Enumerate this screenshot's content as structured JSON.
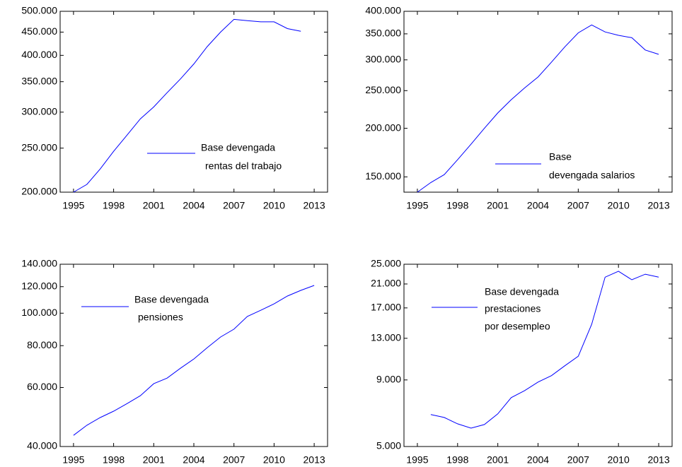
{
  "chart_data": [
    {
      "type": "line",
      "x": [
        1995,
        1996,
        1997,
        1998,
        1999,
        2000,
        2001,
        2002,
        2003,
        2004,
        2005,
        2006,
        2007,
        2008,
        2009,
        2010,
        2011,
        2012
      ],
      "series": [
        {
          "name": [
            "Base devengada",
            "rentas del trabajo"
          ],
          "color": "#0000ff",
          "values": [
            200000,
            208000,
            225000,
            246000,
            267000,
            290000,
            308000,
            331000,
            355000,
            383000,
            418000,
            450000,
            480000,
            477000,
            474000,
            474000,
            458000,
            452000
          ]
        }
      ],
      "xlim": [
        1994,
        2014
      ],
      "xticks": [
        1995,
        1998,
        2001,
        2004,
        2007,
        2010,
        2013
      ],
      "ylim": [
        200000,
        500000
      ],
      "log_scale": true,
      "yticks": [
        {
          "value": 200000,
          "label": "200.000"
        },
        {
          "value": 250000,
          "label": "250.000"
        },
        {
          "value": 300000,
          "label": "300.000"
        },
        {
          "value": 350000,
          "label": "350.000"
        },
        {
          "value": 400000,
          "label": "400.000"
        },
        {
          "value": 450000,
          "label": "450.000"
        },
        {
          "value": 500000,
          "label": "500.000"
        }
      ]
    },
    {
      "type": "line",
      "x": [
        1995,
        1996,
        1997,
        1998,
        1999,
        2000,
        2001,
        2002,
        2003,
        2004,
        2005,
        2006,
        2007,
        2008,
        2009,
        2010,
        2011,
        2012,
        2013
      ],
      "series": [
        {
          "name": [
            "Base",
            "devengada salarios"
          ],
          "color": "#0000ff",
          "values": [
            137000,
            145000,
            152000,
            166000,
            182000,
            200000,
            219000,
            237000,
            254000,
            271000,
            296000,
            324000,
            352000,
            369000,
            354000,
            347000,
            342000,
            318000,
            310000
          ]
        }
      ],
      "xlim": [
        1994,
        2014
      ],
      "xticks": [
        1995,
        1998,
        2001,
        2004,
        2007,
        2010,
        2013
      ],
      "ylim": [
        137000,
        400000
      ],
      "log_scale": true,
      "yticks": [
        {
          "value": 150000,
          "label": "150.000"
        },
        {
          "value": 200000,
          "label": "200.000"
        },
        {
          "value": 250000,
          "label": "250.000"
        },
        {
          "value": 300000,
          "label": "300.000"
        },
        {
          "value": 350000,
          "label": "350.000"
        },
        {
          "value": 400000,
          "label": "400.000"
        }
      ]
    },
    {
      "type": "line",
      "x": [
        1995,
        1996,
        1997,
        1998,
        1999,
        2000,
        2001,
        2002,
        2003,
        2004,
        2005,
        2006,
        2007,
        2008,
        2009,
        2010,
        2011,
        2012,
        2013
      ],
      "series": [
        {
          "name": [
            "Base devengada",
            "pensiones"
          ],
          "color": "#0000ff",
          "values": [
            43200,
            46300,
            48800,
            51000,
            53700,
            56700,
            61600,
            64000,
            68500,
            73000,
            78900,
            84900,
            89600,
            97800,
            102000,
            106600,
            112500,
            117000,
            121000
          ]
        }
      ],
      "xlim": [
        1994,
        2014
      ],
      "xticks": [
        1995,
        1998,
        2001,
        2004,
        2007,
        2010,
        2013
      ],
      "ylim": [
        40000,
        140000
      ],
      "log_scale": true,
      "yticks": [
        {
          "value": 40000,
          "label": "40.000"
        },
        {
          "value": 60000,
          "label": "60.000"
        },
        {
          "value": 80000,
          "label": "80.000"
        },
        {
          "value": 100000,
          "label": "100.000"
        },
        {
          "value": 120000,
          "label": "120.000"
        },
        {
          "value": 140000,
          "label": "140.000"
        }
      ]
    },
    {
      "type": "line",
      "x": [
        1996,
        1997,
        1998,
        1999,
        2000,
        2001,
        2002,
        2003,
        2004,
        2005,
        2006,
        2007,
        2008,
        2009,
        2010,
        2011,
        2012,
        2013
      ],
      "series": [
        {
          "name": [
            "Base devengada",
            "prestaciones",
            "por desempleo"
          ],
          "color": "#0000ff",
          "values": [
            6630,
            6460,
            6110,
            5880,
            6070,
            6670,
            7700,
            8190,
            8830,
            9350,
            10200,
            11100,
            14700,
            22300,
            23500,
            21800,
            22900,
            22300
          ]
        }
      ],
      "xlim": [
        1994,
        2014
      ],
      "xticks": [
        1995,
        1998,
        2001,
        2004,
        2007,
        2010,
        2013
      ],
      "ylim": [
        5000,
        25000
      ],
      "log_scale": true,
      "yticks": [
        {
          "value": 5000,
          "label": "5.000"
        },
        {
          "value": 9000,
          "label": "9.000"
        },
        {
          "value": 13000,
          "label": "13.000"
        },
        {
          "value": 17000,
          "label": "17.000"
        },
        {
          "value": 21000,
          "label": "21.000"
        },
        {
          "value": 25000,
          "label": "25.000"
        }
      ]
    }
  ]
}
